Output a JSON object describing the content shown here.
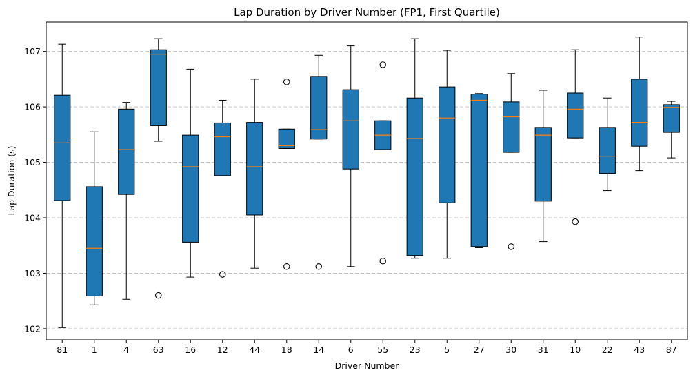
{
  "chart_data": {
    "type": "box",
    "title": "Lap Duration by Driver Number (FP1, First Quartile)",
    "xlabel": "Driver Number",
    "ylabel": "Lap Duration (s)",
    "ylim": [
      101.8,
      107.53
    ],
    "yticks": [
      102,
      103,
      104,
      105,
      106,
      107
    ],
    "grid": "y-dashed",
    "box_color": "#1f77b4",
    "median_color": "#ff7f0e",
    "categories": [
      "81",
      "1",
      "4",
      "63",
      "16",
      "12",
      "44",
      "18",
      "14",
      "6",
      "55",
      "23",
      "5",
      "27",
      "30",
      "31",
      "10",
      "22",
      "43",
      "87"
    ],
    "boxes": [
      {
        "whislo": 102.02,
        "q1": 104.31,
        "med": 105.35,
        "q3": 106.21,
        "whishi": 107.13,
        "fliers": []
      },
      {
        "whislo": 102.43,
        "q1": 102.59,
        "med": 103.45,
        "q3": 104.56,
        "whishi": 105.55,
        "fliers": []
      },
      {
        "whislo": 102.53,
        "q1": 104.42,
        "med": 105.23,
        "q3": 105.96,
        "whishi": 106.08,
        "fliers": []
      },
      {
        "whislo": 105.38,
        "q1": 105.66,
        "med": 106.95,
        "q3": 107.03,
        "whishi": 107.23,
        "fliers": [
          102.6
        ]
      },
      {
        "whislo": 102.93,
        "q1": 103.56,
        "med": 104.92,
        "q3": 105.49,
        "whishi": 106.68,
        "fliers": []
      },
      {
        "whislo": 104.76,
        "q1": 104.76,
        "med": 105.46,
        "q3": 105.71,
        "whishi": 106.12,
        "fliers": [
          102.98
        ]
      },
      {
        "whislo": 103.09,
        "q1": 104.05,
        "med": 104.92,
        "q3": 105.72,
        "whishi": 106.5,
        "fliers": []
      },
      {
        "whislo": 105.25,
        "q1": 105.25,
        "med": 105.3,
        "q3": 105.6,
        "whishi": 105.6,
        "fliers": [
          106.45,
          103.12
        ]
      },
      {
        "whislo": 105.42,
        "q1": 105.42,
        "med": 105.59,
        "q3": 106.55,
        "whishi": 106.93,
        "fliers": [
          103.12
        ]
      },
      {
        "whislo": 103.12,
        "q1": 104.88,
        "med": 105.75,
        "q3": 106.31,
        "whishi": 107.1,
        "fliers": []
      },
      {
        "whislo": 105.23,
        "q1": 105.23,
        "med": 105.49,
        "q3": 105.75,
        "whishi": 105.75,
        "fliers": [
          106.76,
          103.22
        ]
      },
      {
        "whislo": 103.27,
        "q1": 103.32,
        "med": 105.43,
        "q3": 106.16,
        "whishi": 107.23,
        "fliers": []
      },
      {
        "whislo": 103.27,
        "q1": 104.27,
        "med": 105.8,
        "q3": 106.36,
        "whishi": 107.02,
        "fliers": []
      },
      {
        "whislo": 103.46,
        "q1": 103.48,
        "med": 106.12,
        "q3": 106.23,
        "whishi": 106.24,
        "fliers": []
      },
      {
        "whislo": 105.18,
        "q1": 105.18,
        "med": 105.82,
        "q3": 106.09,
        "whishi": 106.6,
        "fliers": [
          103.48
        ]
      },
      {
        "whislo": 103.57,
        "q1": 104.3,
        "med": 105.49,
        "q3": 105.63,
        "whishi": 106.3,
        "fliers": []
      },
      {
        "whislo": 105.44,
        "q1": 105.44,
        "med": 105.96,
        "q3": 106.25,
        "whishi": 107.03,
        "fliers": [
          103.93
        ]
      },
      {
        "whislo": 104.49,
        "q1": 104.8,
        "med": 105.11,
        "q3": 105.63,
        "whishi": 106.16,
        "fliers": []
      },
      {
        "whislo": 104.85,
        "q1": 105.29,
        "med": 105.72,
        "q3": 106.5,
        "whishi": 107.26,
        "fliers": []
      },
      {
        "whislo": 105.08,
        "q1": 105.54,
        "med": 105.99,
        "q3": 106.04,
        "whishi": 106.1,
        "fliers": []
      }
    ]
  }
}
